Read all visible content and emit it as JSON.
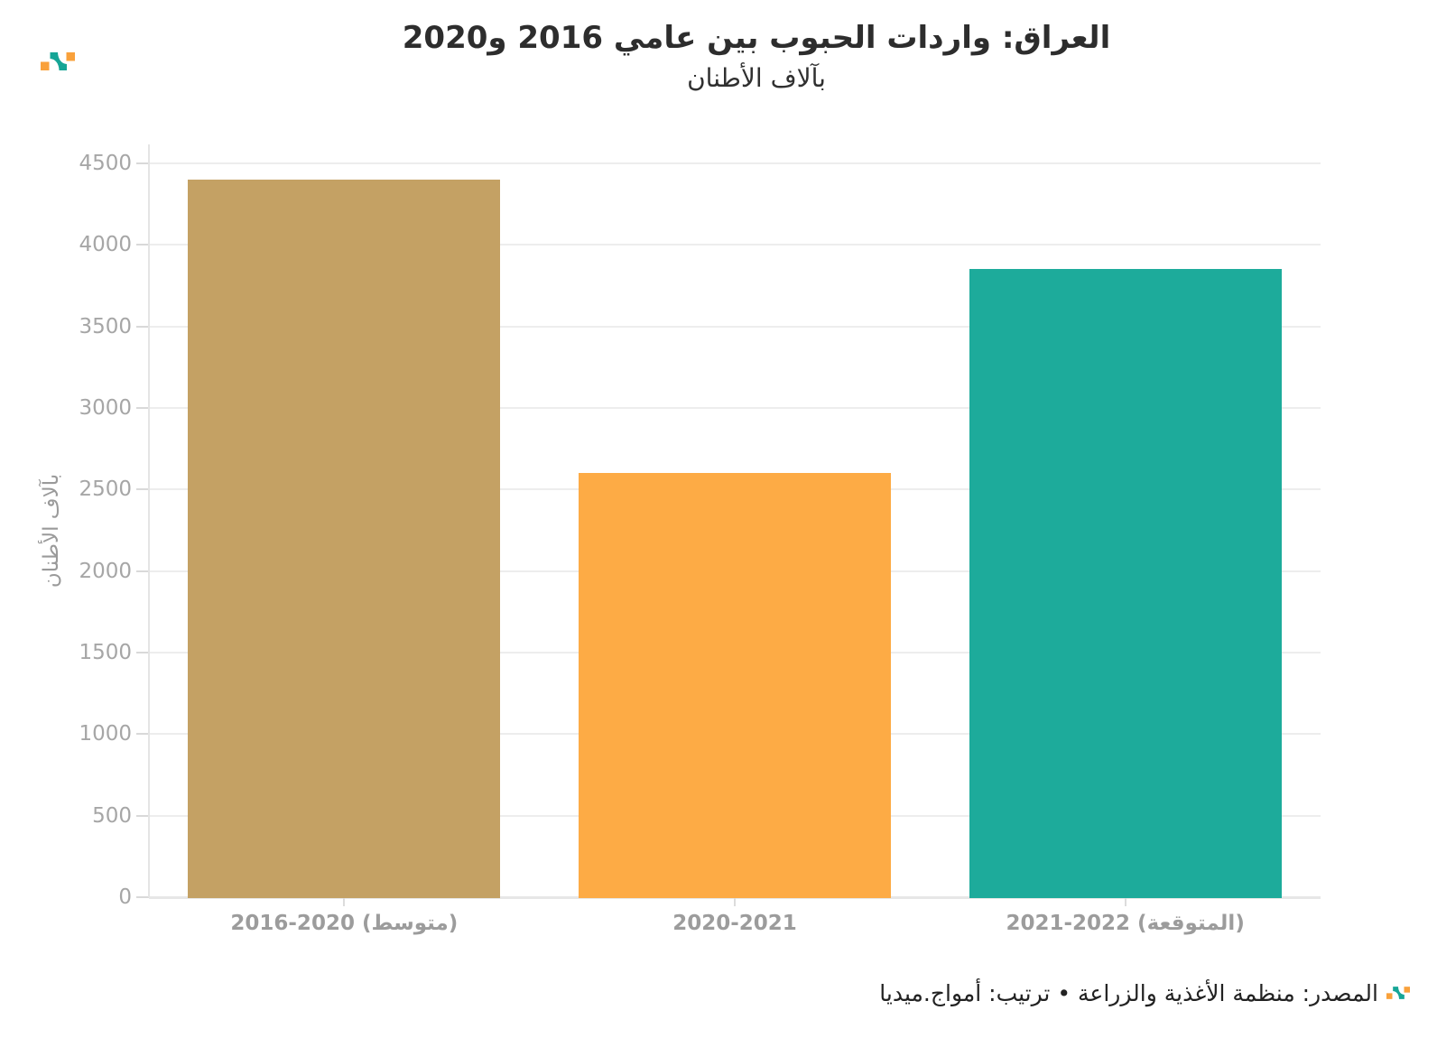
{
  "header": {
    "title": "العراق: واردات الحبوب بين عامي 2016 و2020",
    "subtitle": "بآلاف الأطنان"
  },
  "chart_data": {
    "type": "bar",
    "title": "العراق: واردات الحبوب بين عامي 2016 و2020",
    "subtitle": "بآلاف الأطنان",
    "categories": [
      "2016-2020 (متوسط)",
      "2020-2021",
      "2021-2022 (المتوقعة)"
    ],
    "values": [
      4400,
      2600,
      3850
    ],
    "bar_colors": [
      "#C4A164",
      "#FDAB45",
      "#1DAB9B"
    ],
    "xlabel": "",
    "ylabel": "بآلاف الأطنان",
    "ylim": [
      0,
      4500
    ],
    "ytick_step": 500,
    "grid": "horizontal",
    "legend": "none"
  },
  "footer": {
    "source_line": "المصدر: منظمة الأغذية والزراعة • ترتيب: أمواج.ميديا"
  },
  "brand": {
    "logo_name": "amwaj-media-logo",
    "accent_orange": "#F9A13B",
    "accent_teal": "#16A596"
  }
}
